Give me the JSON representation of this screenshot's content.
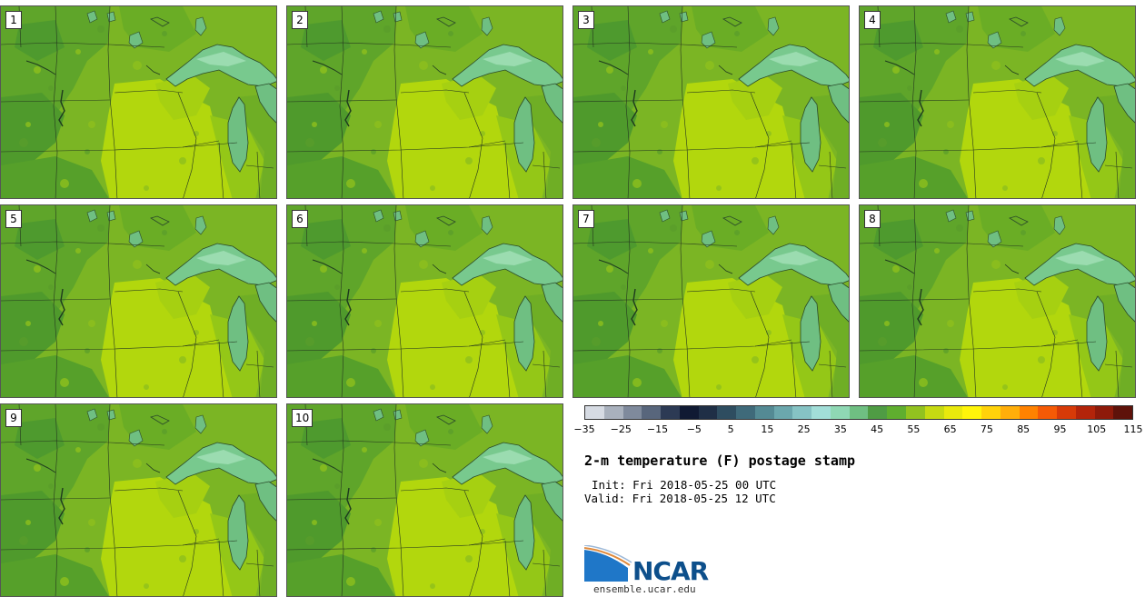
{
  "panels": [
    {
      "label": "1"
    },
    {
      "label": "2"
    },
    {
      "label": "3"
    },
    {
      "label": "4"
    },
    {
      "label": "5"
    },
    {
      "label": "6"
    },
    {
      "label": "7"
    },
    {
      "label": "8"
    },
    {
      "label": "9"
    },
    {
      "label": "10"
    }
  ],
  "colorbar": {
    "colors": [
      "#d6dbe3",
      "#a9b1bd",
      "#7f8a9c",
      "#58667c",
      "#2c3a54",
      "#101a33",
      "#1f2f46",
      "#2e4d60",
      "#3f6a7a",
      "#548a94",
      "#6ba7ad",
      "#86c3c4",
      "#a2ded8",
      "#8fd8b4",
      "#6fbf82",
      "#4f9c44",
      "#5fae2f",
      "#92c21f",
      "#c6da12",
      "#e9e90c",
      "#fff50a",
      "#ffd20a",
      "#ffae0a",
      "#ff8200",
      "#f55a05",
      "#d73a08",
      "#b3240a",
      "#8e1a0a",
      "#5e120a"
    ],
    "ticks": [
      "−35",
      "−25",
      "−15",
      "−5",
      "5",
      "15",
      "25",
      "35",
      "45",
      "55",
      "65",
      "75",
      "85",
      "95",
      "105",
      "115"
    ]
  },
  "title": "2-m temperature (F) postage stamp",
  "init_line": "Init: Fri 2018-05-25 00 UTC",
  "valid_line": "Valid: Fri 2018-05-25 12 UTC",
  "logo_text": "NCAR",
  "website": "ensemble.ucar.edu"
}
